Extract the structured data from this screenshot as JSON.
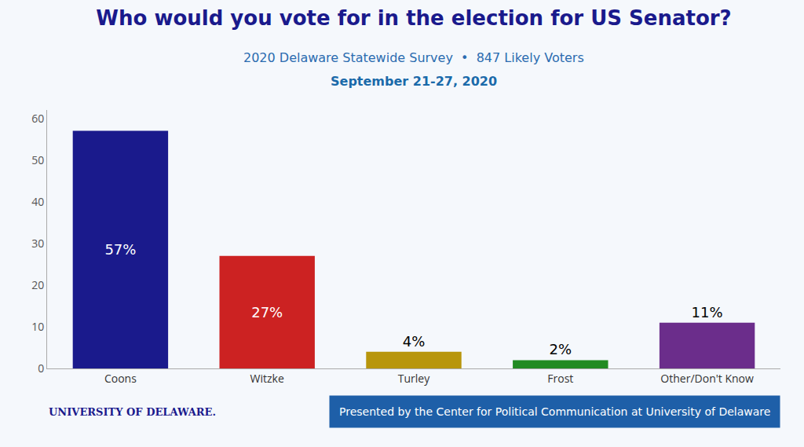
{
  "chart_data": {
    "type": "bar",
    "title": "Who would you vote for in the election for US Senator?",
    "subtitle": [
      "2020 Delaware Statewide Survey  •  847 Likely Voters",
      "September 21-27, 2020"
    ],
    "categories": [
      "Coons",
      "Witzke",
      "Turley",
      "Frost",
      "Other/Don't Know"
    ],
    "values": [
      57,
      27,
      4,
      2,
      11
    ],
    "value_labels": [
      "57%",
      "27%",
      "4%",
      "2%",
      "11%"
    ],
    "data_labels": true,
    "colors": [
      "#1a1a8c",
      "#cc2222",
      "#b8960c",
      "#228b22",
      "#6b2d8b"
    ],
    "ylim": [
      0,
      62
    ],
    "yticks": [
      0,
      10,
      20,
      30,
      40,
      50,
      60
    ],
    "grid": false,
    "annotations": [
      "Presented by the Center for Political Communication at University of Delaware",
      "UNIVERSITY OF DELAWARE."
    ]
  }
}
